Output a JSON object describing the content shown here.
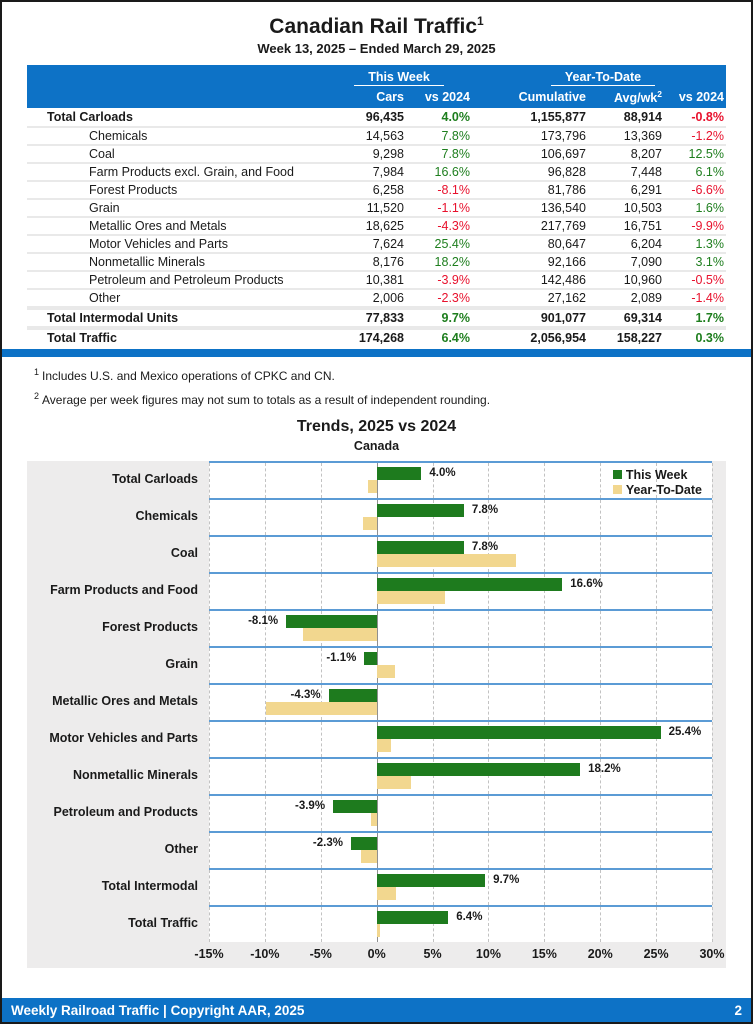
{
  "page": {
    "title": "Canadian Rail Traffic",
    "title_superscript": "1",
    "subtitle": "Week 13, 2025 – Ended March 29, 2025",
    "footer_left": "Weekly Railroad Traffic | Copyright AAR, 2025",
    "footer_page_number": "2"
  },
  "table": {
    "group_headers": {
      "this_week": "This Week",
      "ytd": "Year-To-Date"
    },
    "columns": {
      "cars": "Cars",
      "vs2024": "vs 2024",
      "cumulative": "Cumulative",
      "avg_wk": "Avg/wk",
      "avg_wk_sup": "2",
      "ytd_vs2024": "vs 2024"
    },
    "rows": [
      {
        "label": "Total Carloads",
        "cars": "96,435",
        "vs2024": "4.0%",
        "cumulative": "1,155,877",
        "avg_wk": "88,914",
        "ytd_vs2024": "-0.8%",
        "bold": true,
        "total": false
      },
      {
        "label": "Chemicals",
        "cars": "14,563",
        "vs2024": "7.8%",
        "cumulative": "173,796",
        "avg_wk": "13,369",
        "ytd_vs2024": "-1.2%",
        "bold": false,
        "total": false
      },
      {
        "label": "Coal",
        "cars": "9,298",
        "vs2024": "7.8%",
        "cumulative": "106,697",
        "avg_wk": "8,207",
        "ytd_vs2024": "12.5%",
        "bold": false,
        "total": false
      },
      {
        "label": "Farm Products excl. Grain, and Food",
        "cars": "7,984",
        "vs2024": "16.6%",
        "cumulative": "96,828",
        "avg_wk": "7,448",
        "ytd_vs2024": "6.1%",
        "bold": false,
        "total": false
      },
      {
        "label": "Forest Products",
        "cars": "6,258",
        "vs2024": "-8.1%",
        "cumulative": "81,786",
        "avg_wk": "6,291",
        "ytd_vs2024": "-6.6%",
        "bold": false,
        "total": false
      },
      {
        "label": "Grain",
        "cars": "11,520",
        "vs2024": "-1.1%",
        "cumulative": "136,540",
        "avg_wk": "10,503",
        "ytd_vs2024": "1.6%",
        "bold": false,
        "total": false
      },
      {
        "label": "Metallic Ores and Metals",
        "cars": "18,625",
        "vs2024": "-4.3%",
        "cumulative": "217,769",
        "avg_wk": "16,751",
        "ytd_vs2024": "-9.9%",
        "bold": false,
        "total": false
      },
      {
        "label": "Motor Vehicles and Parts",
        "cars": "7,624",
        "vs2024": "25.4%",
        "cumulative": "80,647",
        "avg_wk": "6,204",
        "ytd_vs2024": "1.3%",
        "bold": false,
        "total": false
      },
      {
        "label": "Nonmetallic Minerals",
        "cars": "8,176",
        "vs2024": "18.2%",
        "cumulative": "92,166",
        "avg_wk": "7,090",
        "ytd_vs2024": "3.1%",
        "bold": false,
        "total": false
      },
      {
        "label": "Petroleum and Petroleum Products",
        "cars": "10,381",
        "vs2024": "-3.9%",
        "cumulative": "142,486",
        "avg_wk": "10,960",
        "ytd_vs2024": "-0.5%",
        "bold": false,
        "total": false
      },
      {
        "label": "Other",
        "cars": "2,006",
        "vs2024": "-2.3%",
        "cumulative": "27,162",
        "avg_wk": "2,089",
        "ytd_vs2024": "-1.4%",
        "bold": false,
        "total": false
      },
      {
        "label": "Total Intermodal Units",
        "cars": "77,833",
        "vs2024": "9.7%",
        "cumulative": "901,077",
        "avg_wk": "69,314",
        "ytd_vs2024": "1.7%",
        "bold": true,
        "total": true
      },
      {
        "label": "Total Traffic",
        "cars": "174,268",
        "vs2024": "6.4%",
        "cumulative": "2,056,954",
        "avg_wk": "158,227",
        "ytd_vs2024": "0.3%",
        "bold": true,
        "total": true
      }
    ]
  },
  "footnotes": [
    {
      "sup": "1",
      "text": "Includes U.S. and Mexico operations of CPKC and CN."
    },
    {
      "sup": "2",
      "text": "Average per week figures may not sum to totals as a result of independent rounding."
    }
  ],
  "chart_data": {
    "type": "bar",
    "orientation": "horizontal",
    "title": "Trends, 2025 vs 2024",
    "subtitle": "Canada",
    "categories": [
      "Total Carloads",
      "Chemicals",
      "Coal",
      "Farm Products and Food",
      "Forest Products",
      "Grain",
      "Metallic Ores and Metals",
      "Motor Vehicles and Parts",
      "Nonmetallic Minerals",
      "Petroleum and Products",
      "Other",
      "Total Intermodal",
      "Total Traffic"
    ],
    "series": [
      {
        "name": "This Week",
        "color": "#1e7b1e",
        "values": [
          4.0,
          7.8,
          7.8,
          16.6,
          -8.1,
          -1.1,
          -4.3,
          25.4,
          18.2,
          -3.9,
          -2.3,
          9.7,
          6.4
        ]
      },
      {
        "name": "Year-To-Date",
        "color": "#f2d78f",
        "values": [
          -0.8,
          -1.2,
          12.5,
          6.1,
          -6.6,
          1.6,
          -9.9,
          1.3,
          3.1,
          -0.5,
          -1.4,
          1.7,
          0.3
        ]
      }
    ],
    "bar_labels": [
      "4.0%",
      "7.8%",
      "7.8%",
      "16.6%",
      "-8.1%",
      "-1.1%",
      "-4.3%",
      "25.4%",
      "18.2%",
      "-3.9%",
      "-2.3%",
      "9.7%",
      "6.4%"
    ],
    "xlim": [
      -15,
      30
    ],
    "xtick_step": 5,
    "xtick_labels": [
      "-15%",
      "-10%",
      "-5%",
      "0%",
      "5%",
      "10%",
      "15%",
      "20%",
      "25%",
      "30%"
    ],
    "legend_position": "top-right",
    "grid": "dashed-vertical"
  },
  "colors": {
    "accent_blue": "#0d72c6",
    "band_line_blue": "#5b9bd5",
    "bar_green": "#1e7b1e",
    "bar_tan": "#f2d78f",
    "positive_text": "#1e7e1e",
    "negative_text": "#e8112d"
  }
}
